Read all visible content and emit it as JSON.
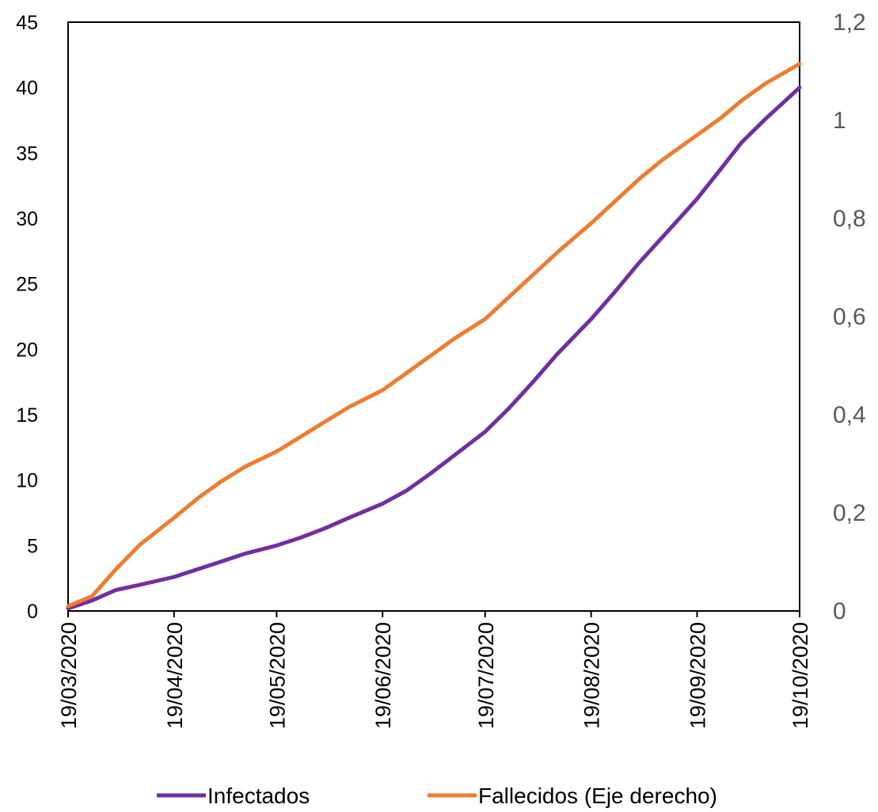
{
  "chart_data": {
    "type": "line",
    "title": "",
    "legend_position": "bottom",
    "grid": false,
    "x": [
      "2020-03-19",
      "2020-03-26",
      "2020-04-02",
      "2020-04-09",
      "2020-04-19",
      "2020-04-26",
      "2020-05-03",
      "2020-05-10",
      "2020-05-19",
      "2020-05-26",
      "2020-06-02",
      "2020-06-09",
      "2020-06-19",
      "2020-06-26",
      "2020-07-03",
      "2020-07-10",
      "2020-07-19",
      "2020-07-26",
      "2020-08-02",
      "2020-08-09",
      "2020-08-19",
      "2020-08-26",
      "2020-09-02",
      "2020-09-09",
      "2020-09-19",
      "2020-09-26",
      "2020-10-02",
      "2020-10-09",
      "2020-10-19"
    ],
    "x_ticks": [
      "19/03/2020",
      "19/04/2020",
      "19/05/2020",
      "19/06/2020",
      "19/07/2020",
      "19/08/2020",
      "19/09/2020",
      "19/10/2020"
    ],
    "x_tick_dates": [
      "2020-03-19",
      "2020-04-19",
      "2020-05-19",
      "2020-06-19",
      "2020-07-19",
      "2020-08-19",
      "2020-09-19",
      "2020-10-19"
    ],
    "x_range": [
      "2020-03-19",
      "2020-10-19"
    ],
    "y_left": {
      "ylim": [
        0,
        45
      ],
      "ticks": [
        "0",
        "5",
        "10",
        "15",
        "20",
        "25",
        "30",
        "35",
        "40",
        "45"
      ],
      "tick_values": [
        0,
        5,
        10,
        15,
        20,
        25,
        30,
        35,
        40,
        45
      ]
    },
    "y_right": {
      "ylim": [
        0,
        1.2
      ],
      "ticks": [
        "0",
        "0,2",
        "0,4",
        "0,6",
        "0,8",
        "1",
        "1,2"
      ],
      "tick_values": [
        0,
        0.2,
        0.4,
        0.6,
        0.8,
        1.0,
        1.2
      ]
    },
    "series": [
      {
        "name": "Infectados",
        "axis": "left",
        "color": "#7030A0",
        "values": [
          0.2,
          0.8,
          1.6,
          2.0,
          2.6,
          3.2,
          3.8,
          4.4,
          5.0,
          5.6,
          6.3,
          7.1,
          8.2,
          9.2,
          10.5,
          11.9,
          13.7,
          15.5,
          17.5,
          19.6,
          22.3,
          24.4,
          26.6,
          28.6,
          31.5,
          33.8,
          35.8,
          37.6,
          40.0
        ]
      },
      {
        "name": "Fallecidos (Eje derecho)",
        "axis": "right",
        "color": "#ED7D31",
        "values": [
          0.01,
          0.03,
          0.085,
          0.135,
          0.19,
          0.23,
          0.265,
          0.295,
          0.325,
          0.355,
          0.385,
          0.415,
          0.45,
          0.485,
          0.52,
          0.555,
          0.595,
          0.64,
          0.685,
          0.73,
          0.79,
          0.835,
          0.88,
          0.92,
          0.97,
          1.005,
          1.04,
          1.075,
          1.115
        ]
      }
    ]
  }
}
